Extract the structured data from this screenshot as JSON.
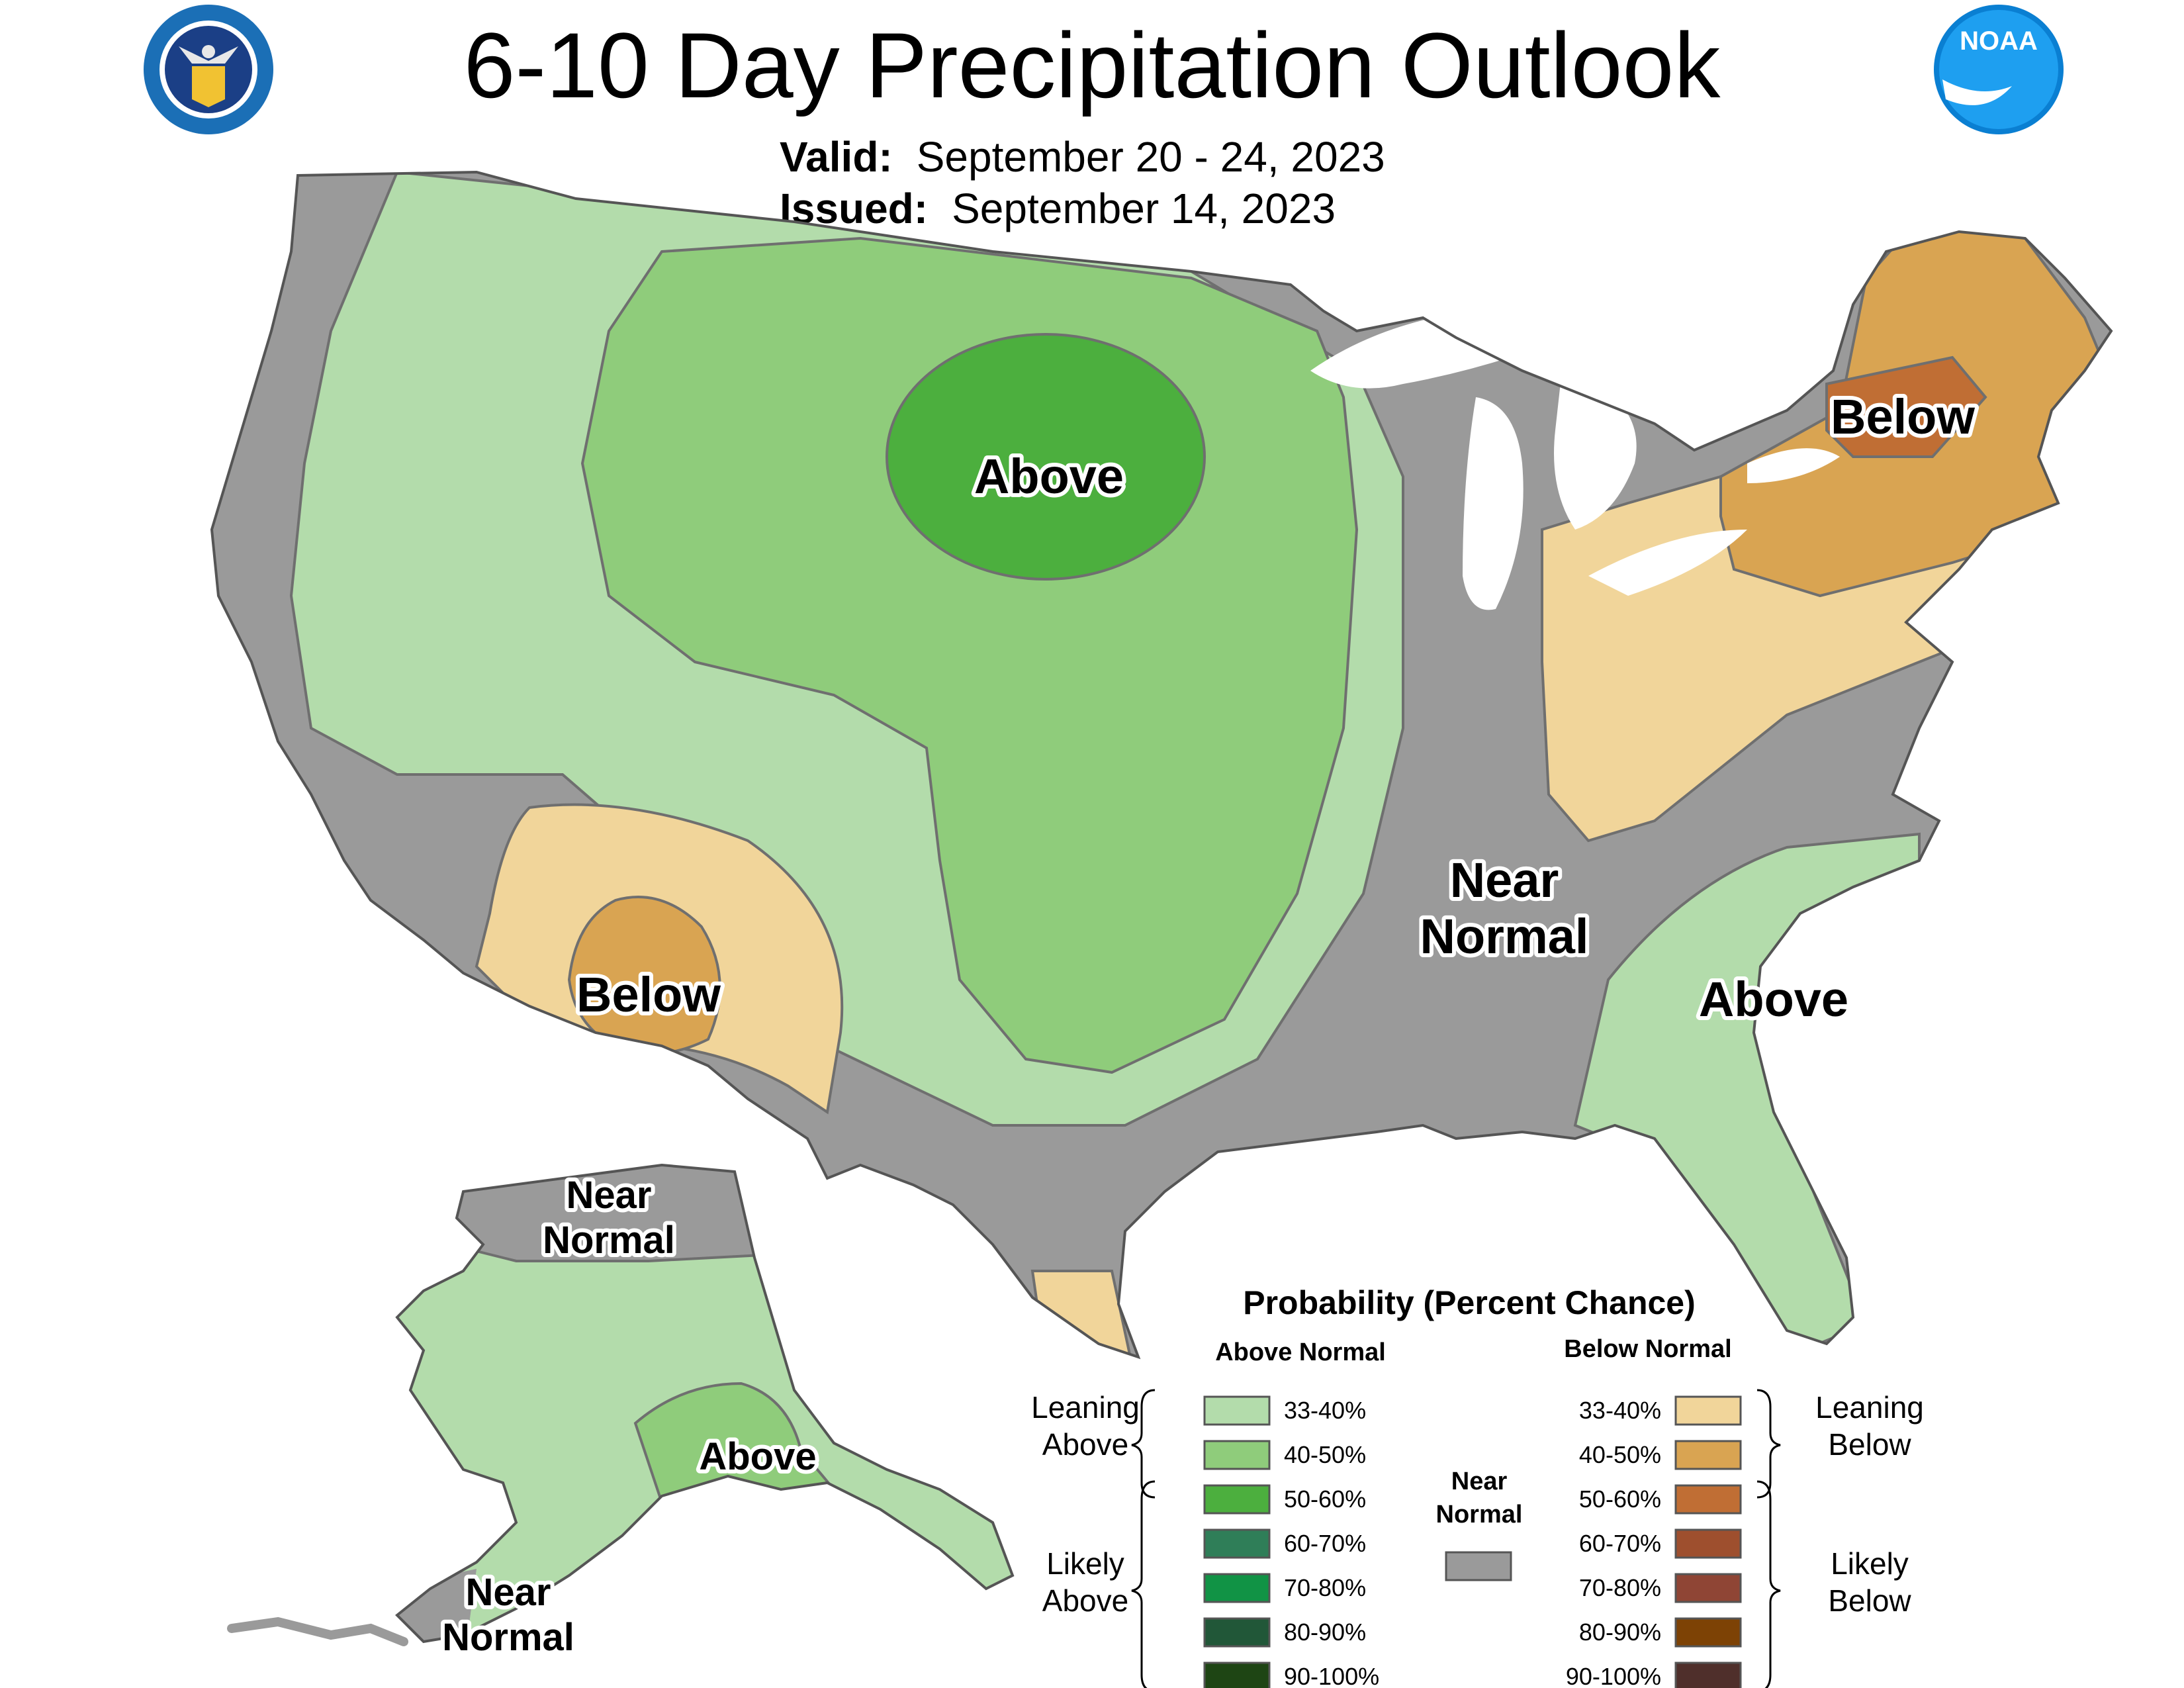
{
  "header": {
    "title": "6-10 Day Precipitation Outlook",
    "valid_label": "Valid:",
    "valid_value": "September 20 - 24, 2023",
    "issued_label": "Issued:",
    "issued_value": "September 14, 2023"
  },
  "logos": {
    "doc_icon": "department-of-commerce-seal-icon",
    "noaa_icon": "noaa-logo-icon",
    "noaa_text": "NOAA"
  },
  "colors": {
    "near_normal": "#9a9a9a",
    "above_33_40": "#b3dcab",
    "above_40_50": "#8fcc7b",
    "above_50_60": "#4caf3e",
    "above_60_70": "#2f7e58",
    "above_70_80": "#119345",
    "above_80_90": "#215738",
    "above_90_100": "#1e4514",
    "below_33_40": "#f1d59a",
    "below_40_50": "#d9a452",
    "below_50_60": "#c06e34",
    "below_60_70": "#9e4f2e",
    "below_70_80": "#8f4535",
    "below_80_90": "#7d4205",
    "below_90_100": "#4f2f2b",
    "water": "#ffffff"
  },
  "map": {
    "labels": {
      "above_plains": "Above",
      "below_southwest": "Below",
      "below_northeast": "Below",
      "near_normal_east_1": "Near",
      "near_normal_east_2": "Normal",
      "above_southeast": "Above",
      "ak_near_north_1": "Near",
      "ak_near_north_2": "Normal",
      "ak_above": "Above",
      "ak_near_south_1": "Near",
      "ak_near_south_2": "Normal"
    }
  },
  "legend": {
    "title": "Probability (Percent Chance)",
    "above_header": "Above Normal",
    "below_header": "Below Normal",
    "near_header_1": "Near",
    "near_header_2": "Normal",
    "leaning_above_1": "Leaning",
    "leaning_above_2": "Above",
    "likely_above_1": "Likely",
    "likely_above_2": "Above",
    "leaning_below_1": "Leaning",
    "leaning_below_2": "Below",
    "likely_below_1": "Likely",
    "likely_below_2": "Below",
    "above_items": [
      {
        "range": "33-40%",
        "color": "#b3dcab"
      },
      {
        "range": "40-50%",
        "color": "#8fcc7b"
      },
      {
        "range": "50-60%",
        "color": "#4caf3e"
      },
      {
        "range": "60-70%",
        "color": "#2f7e58"
      },
      {
        "range": "70-80%",
        "color": "#119345"
      },
      {
        "range": "80-90%",
        "color": "#215738"
      },
      {
        "range": "90-100%",
        "color": "#1e4514"
      }
    ],
    "below_items": [
      {
        "range": "33-40%",
        "color": "#f1d59a"
      },
      {
        "range": "40-50%",
        "color": "#d9a452"
      },
      {
        "range": "50-60%",
        "color": "#c06e34"
      },
      {
        "range": "60-70%",
        "color": "#9e4f2e"
      },
      {
        "range": "70-80%",
        "color": "#8f4535"
      },
      {
        "range": "80-90%",
        "color": "#7d4205"
      },
      {
        "range": "90-100%",
        "color": "#4f2f2b"
      }
    ]
  }
}
